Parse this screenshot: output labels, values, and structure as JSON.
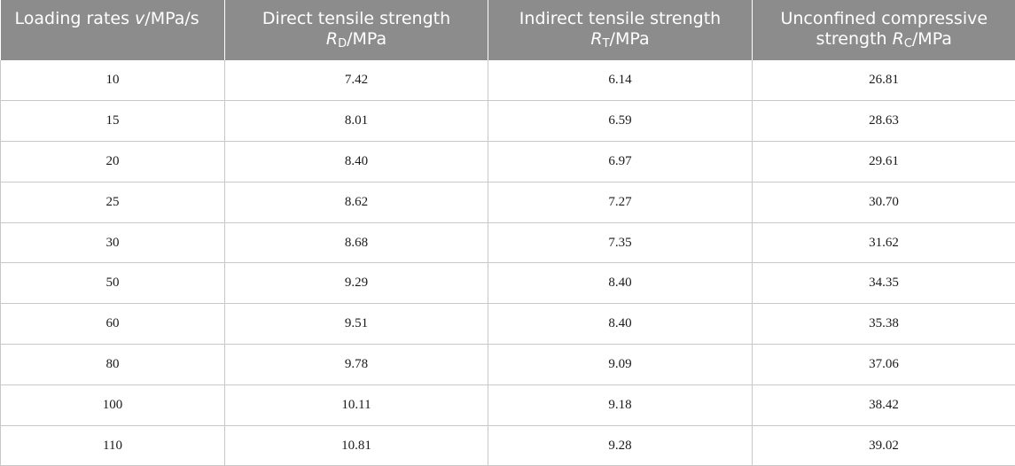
{
  "table": {
    "headers": [
      {
        "text": "Loading rates ",
        "var": "v",
        "sub": "",
        "unit": "/MPa/s"
      },
      {
        "text": "Direct tensile strength ",
        "var": "R",
        "sub": "D",
        "unit": "/MPa"
      },
      {
        "text": "Indirect tensile strength ",
        "var": "R",
        "sub": "T",
        "unit": "/MPa"
      },
      {
        "text": "Unconfined compressive strength ",
        "var": "R",
        "sub": "C",
        "unit": "/MPa"
      }
    ],
    "rows": [
      [
        "10",
        "7.42",
        "6.14",
        "26.81"
      ],
      [
        "15",
        "8.01",
        "6.59",
        "28.63"
      ],
      [
        "20",
        "8.40",
        "6.97",
        "29.61"
      ],
      [
        "25",
        "8.62",
        "7.27",
        "30.70"
      ],
      [
        "30",
        "8.68",
        "7.35",
        "31.62"
      ],
      [
        "50",
        "9.29",
        "8.40",
        "34.35"
      ],
      [
        "60",
        "9.51",
        "8.40",
        "35.38"
      ],
      [
        "80",
        "9.78",
        "9.09",
        "37.06"
      ],
      [
        "100",
        "10.11",
        "9.18",
        "38.42"
      ],
      [
        "110",
        "10.81",
        "9.28",
        "39.02"
      ]
    ]
  },
  "colors": {
    "header_bg": "#8c8c8c",
    "header_text": "#ffffff",
    "grid": "#c8c8c8"
  }
}
